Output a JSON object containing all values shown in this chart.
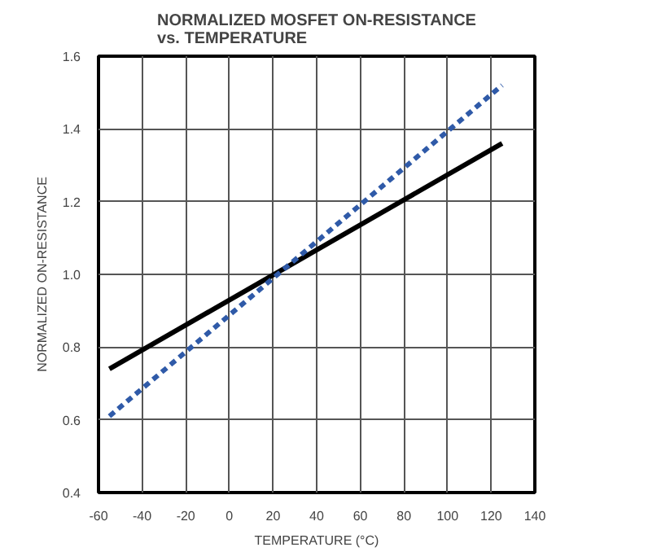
{
  "chart_data": {
    "type": "line",
    "title": "NORMALIZED MOSFET ON-RESISTANCE\nvs. TEMPERATURE",
    "xlabel": "TEMPERATURE (°C)",
    "ylabel": "NORMALIZED ON-RESISTANCE",
    "xlim": [
      -60,
      140
    ],
    "xticks": [
      -60,
      -40,
      -20,
      0,
      20,
      40,
      60,
      80,
      100,
      120,
      140
    ],
    "ylim": [
      0.4,
      1.6
    ],
    "yticks": [
      {
        "value": 0.4,
        "label": "0.4"
      },
      {
        "value": 0.6,
        "label": "0.6"
      },
      {
        "value": 0.8,
        "label": "0.8"
      },
      {
        "value": 1.0,
        "label": "1.0"
      },
      {
        "value": 1.2,
        "label": "1.2"
      },
      {
        "value": 1.4,
        "label": "1.4"
      },
      {
        "value": 1.6,
        "label": "1.6"
      }
    ],
    "grid": true,
    "x": [
      -55,
      125
    ],
    "series": [
      {
        "color": "#000000",
        "line_style": "solid",
        "values": [
          0.74,
          1.36
        ]
      },
      {
        "color": "#2f5aa8",
        "line_style": "dashed",
        "values": [
          0.61,
          1.52
        ]
      }
    ]
  }
}
